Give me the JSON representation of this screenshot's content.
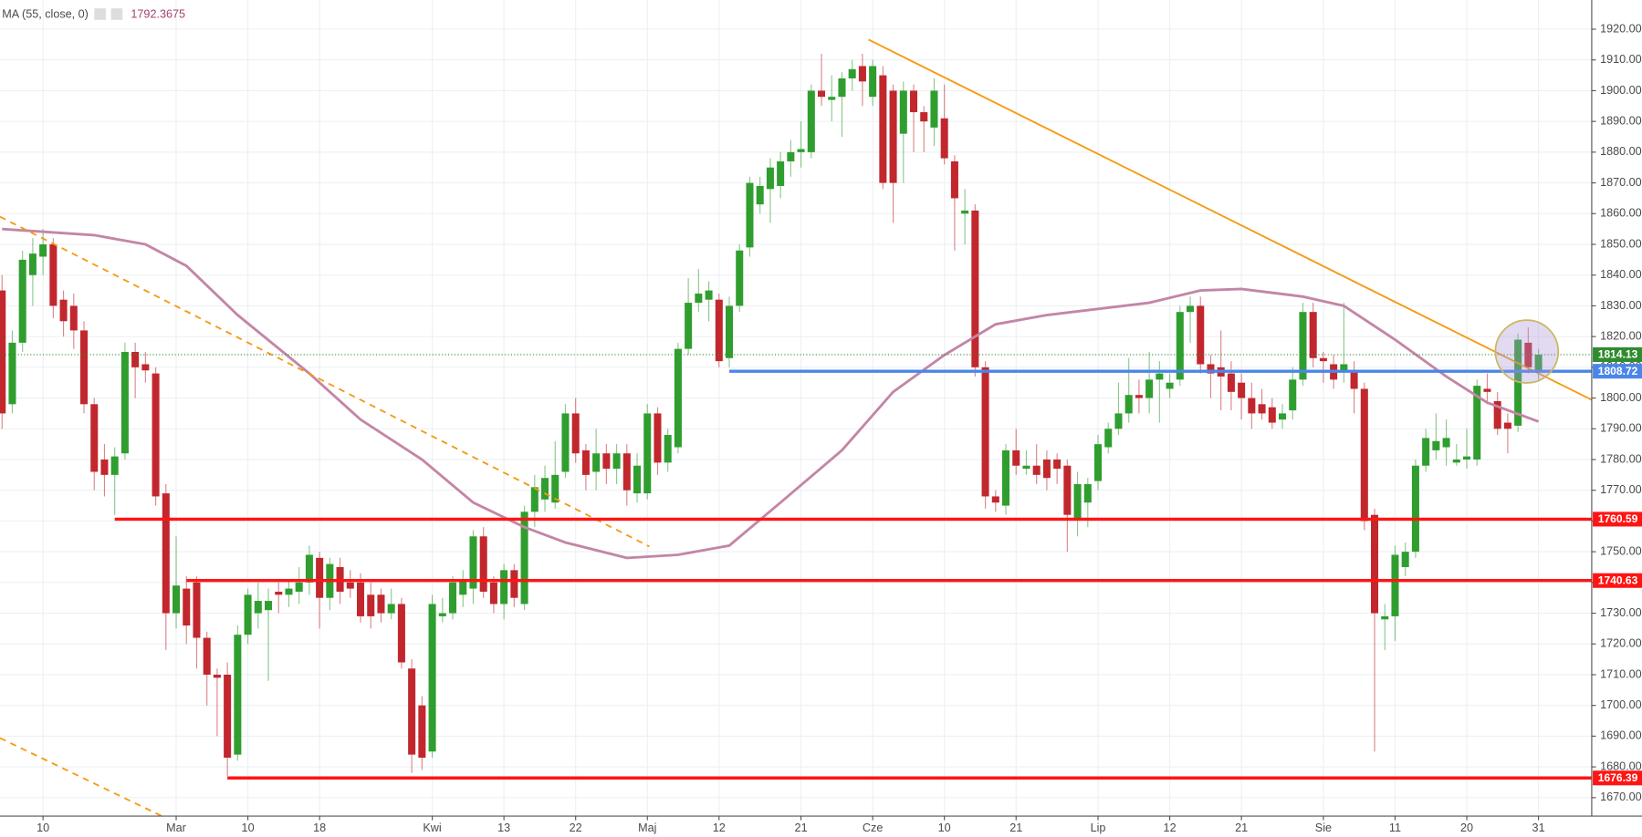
{
  "chart_data": {
    "type": "candlestick",
    "indicator": {
      "label": "MA (55, close, 0)",
      "color": "#c386a6",
      "x": [
        0,
        9,
        14,
        18,
        23,
        30,
        35,
        41,
        46,
        51,
        55,
        61,
        66,
        71,
        76,
        82,
        87,
        92,
        97,
        102,
        107,
        112,
        117,
        121,
        127,
        131,
        136,
        141,
        145,
        150
      ],
      "values": [
        1855,
        1853,
        1850,
        1843,
        1827,
        1808,
        1793,
        1780,
        1766,
        1758,
        1753,
        1748,
        1749,
        1752,
        1766,
        1783,
        1802,
        1814,
        1824,
        1827,
        1829,
        1831,
        1835,
        1835.5,
        1833,
        1830,
        1819,
        1807,
        1798.5,
        1792.3675
      ]
    },
    "up_color": "#2f9e2f",
    "down_color": "#c1272d",
    "categories": [
      null,
      null,
      null,
      null,
      null,
      null,
      null,
      null,
      null,
      null,
      null,
      null,
      null,
      null,
      null,
      null,
      null,
      null,
      null,
      null,
      null,
      null,
      null,
      null,
      null,
      null,
      null,
      null,
      null,
      null,
      null,
      null,
      null,
      null,
      null,
      null,
      null,
      null,
      null,
      null,
      null,
      null,
      null,
      null,
      null,
      null,
      null,
      null,
      null,
      null,
      null,
      null,
      null,
      null,
      null,
      null,
      null,
      null,
      null,
      null,
      null,
      null,
      null,
      null,
      null,
      null,
      null,
      null,
      null,
      null,
      null,
      null,
      null,
      null,
      null,
      null,
      null,
      null,
      null,
      null,
      null,
      null,
      null,
      null,
      null,
      null,
      null,
      null,
      null,
      null,
      null,
      null,
      null,
      null,
      null,
      null,
      null,
      null,
      null,
      null,
      null,
      null,
      null,
      null,
      null,
      null,
      null,
      null,
      null,
      null,
      null,
      null,
      null,
      null,
      null,
      null,
      null,
      null,
      null,
      null,
      null,
      null,
      null,
      null,
      null,
      null,
      null,
      null,
      null,
      null,
      null,
      null,
      null,
      null,
      null,
      null,
      null,
      null,
      null,
      null,
      null,
      null,
      null,
      null,
      null,
      null,
      null,
      null,
      null,
      null,
      null
    ],
    "open": [
      1835,
      1798,
      1818,
      1840,
      1846,
      1850,
      1832,
      1830,
      1822,
      1798,
      1780,
      1775,
      1782,
      1815,
      1811,
      1808,
      1769,
      1730,
      1738,
      1740,
      1722,
      1710,
      1710,
      1684,
      1723,
      1730,
      1731,
      1737,
      1736,
      1737,
      1740,
      1748,
      1735,
      1745,
      1740,
      1740,
      1736,
      1736,
      1730,
      1733,
      1712,
      1700,
      1685,
      1729,
      1730,
      1736,
      1738,
      1755,
      1740,
      1733,
      1744,
      1733,
      1763,
      1767,
      1766,
      1776,
      1795,
      1783,
      1776,
      1782,
      1777,
      1782,
      1769,
      1769,
      1795,
      1779,
      1784,
      1816,
      1831,
      1832,
      1832,
      1813,
      1830,
      1849,
      1863,
      1868,
      1869,
      1877,
      1880,
      1880,
      1900,
      1897,
      1898,
      1904,
      1908,
      1898,
      1905,
      1900,
      1886,
      1900,
      1893,
      1888,
      1891,
      1877,
      1860,
      1861,
      1810,
      1768,
      1765,
      1783,
      1777,
      1778,
      1780,
      1780,
      1778,
      1761,
      1766,
      1773,
      1784,
      1790,
      1795,
      1801,
      1800,
      1806,
      1803,
      1806,
      1828,
      1830,
      1811,
      1810,
      1808,
      1805,
      1800,
      1798,
      1797,
      1793,
      1796,
      1806,
      1828,
      1813,
      1811,
      1809,
      1809,
      1803,
      1762,
      1728,
      1729,
      1745,
      1750,
      1778,
      1783,
      1784,
      1779,
      1780,
      1780,
      1803,
      1799,
      1792,
      1791,
      1818,
      1809
    ],
    "high": [
      1840,
      1822,
      1848,
      1852,
      1855,
      1852,
      1835,
      1834,
      1825,
      1800,
      1785,
      1784,
      1818,
      1818,
      1815,
      1810,
      1772,
      1755,
      1742,
      1742,
      1724,
      1712,
      1714,
      1726,
      1738,
      1740,
      1738,
      1740,
      1741,
      1745,
      1752,
      1750,
      1748,
      1748,
      1744,
      1743,
      1740,
      1738,
      1738,
      1735,
      1715,
      1703,
      1736,
      1735,
      1742,
      1744,
      1757,
      1758,
      1742,
      1746,
      1746,
      1765,
      1775,
      1778,
      1786,
      1798,
      1800,
      1785,
      1790,
      1785,
      1785,
      1785,
      1782,
      1798,
      1797,
      1790,
      1818,
      1839,
      1842,
      1838,
      1834,
      1833,
      1850,
      1872,
      1872,
      1878,
      1880,
      1884,
      1890,
      1902,
      1912,
      1905,
      1906,
      1910,
      1912,
      1910,
      1908,
      1902,
      1903,
      1902,
      1895,
      1904,
      1902,
      1879,
      1868,
      1863,
      1812,
      1770,
      1785,
      1790,
      1783,
      1785,
      1783,
      1782,
      1780,
      1776,
      1774,
      1788,
      1792,
      1805,
      1813,
      1806,
      1815,
      1812,
      1808,
      1830,
      1833,
      1833,
      1814,
      1822,
      1812,
      1808,
      1805,
      1803,
      1800,
      1798,
      1810,
      1831,
      1831,
      1815,
      1814,
      1831,
      1812,
      1805,
      1764,
      1733,
      1752,
      1753,
      1780,
      1790,
      1795,
      1793,
      1785,
      1790,
      1806,
      1808,
      1802,
      1795,
      1821,
      1823,
      1816
    ],
    "low": [
      1790,
      1795,
      1815,
      1830,
      1840,
      1826,
      1820,
      1816,
      1795,
      1770,
      1768,
      1762,
      1780,
      1800,
      1805,
      1765,
      1718,
      1725,
      1720,
      1712,
      1700,
      1690,
      1677,
      1682,
      1720,
      1725,
      1708,
      1730,
      1732,
      1733,
      1736,
      1725,
      1731,
      1733,
      1735,
      1727,
      1725,
      1727,
      1728,
      1712,
      1678,
      1679,
      1683,
      1727,
      1728,
      1732,
      1733,
      1735,
      1730,
      1728,
      1732,
      1731,
      1758,
      1763,
      1764,
      1774,
      1779,
      1770,
      1770,
      1772,
      1772,
      1765,
      1766,
      1767,
      1775,
      1776,
      1782,
      1814,
      1828,
      1825,
      1810,
      1810,
      1828,
      1846,
      1860,
      1857,
      1865,
      1872,
      1875,
      1878,
      1895,
      1890,
      1885,
      1900,
      1895,
      1895,
      1868,
      1857,
      1870,
      1880,
      1880,
      1882,
      1876,
      1848,
      1850,
      1807,
      1764,
      1763,
      1762,
      1775,
      1775,
      1772,
      1770,
      1772,
      1750,
      1755,
      1758,
      1770,
      1782,
      1788,
      1792,
      1795,
      1795,
      1792,
      1800,
      1804,
      1818,
      1808,
      1800,
      1796,
      1796,
      1793,
      1790,
      1793,
      1790,
      1790,
      1793,
      1804,
      1810,
      1805,
      1803,
      1805,
      1795,
      1757,
      1685,
      1718,
      1721,
      1742,
      1748,
      1776,
      1780,
      1778,
      1778,
      1777,
      1778,
      1798,
      1788,
      1782,
      1789,
      1808,
      1806
    ],
    "close": [
      1795,
      1818,
      1845,
      1847,
      1850,
      1830,
      1825,
      1822,
      1798,
      1776,
      1775,
      1781,
      1815,
      1810,
      1809,
      1768,
      1730,
      1739,
      1726,
      1722,
      1710,
      1709,
      1683,
      1723,
      1736,
      1734,
      1734,
      1736,
      1738,
      1740,
      1749,
      1735,
      1746,
      1737,
      1738,
      1729,
      1729,
      1730,
      1733,
      1714,
      1684,
      1683,
      1733,
      1730,
      1740,
      1741,
      1755,
      1737,
      1733,
      1744,
      1735,
      1763,
      1771,
      1774,
      1775,
      1795,
      1782,
      1775,
      1782,
      1777,
      1782,
      1770,
      1778,
      1795,
      1779,
      1788,
      1816,
      1831,
      1834,
      1835,
      1812,
      1830,
      1848,
      1870,
      1869,
      1875,
      1877,
      1880,
      1881,
      1900,
      1898,
      1898,
      1904,
      1907,
      1903,
      1908,
      1870,
      1870,
      1900,
      1893,
      1890,
      1900,
      1878,
      1865,
      1861,
      1810,
      1768,
      1766,
      1783,
      1778,
      1778,
      1775,
      1774,
      1777,
      1762,
      1772,
      1772,
      1785,
      1790,
      1795,
      1801,
      1800,
      1806,
      1808,
      1805,
      1828,
      1830,
      1811,
      1808,
      1807,
      1802,
      1800,
      1795,
      1795,
      1792,
      1795,
      1806,
      1828,
      1813,
      1812,
      1806,
      1811,
      1803,
      1760,
      1730,
      1729,
      1749,
      1750,
      1778,
      1787,
      1786,
      1787,
      1780,
      1781,
      1804,
      1802,
      1790,
      1790,
      1819,
      1810,
      1814.13
    ],
    "levels": [
      {
        "value": 1814.13,
        "from": 0,
        "color": "#2e8b2e",
        "style": "dotted"
      },
      {
        "value": 1808.72,
        "from": 71,
        "color": "#4a86e8",
        "style": "solid"
      },
      {
        "value": 1760.59,
        "from": 11,
        "color": "#ff1414",
        "style": "solid"
      },
      {
        "value": 1740.63,
        "from": 18,
        "color": "#ff1414",
        "style": "solid"
      },
      {
        "value": 1676.39,
        "from": 22,
        "color": "#ff1414",
        "style": "solid"
      }
    ],
    "trendlines": [
      {
        "x": [
          84.6,
          155.2
        ],
        "y": [
          1916.6,
          1799.4
        ],
        "color": "#f59a10",
        "style": "solid"
      },
      {
        "x": [
          -0.2,
          63.2
        ],
        "y": [
          1859,
          1751.7
        ],
        "color": "#f59a10",
        "style": "dashed"
      },
      {
        "x": [
          -0.2,
          15.6
        ],
        "y": [
          1689.4,
          1664
        ],
        "color": "#f59a10",
        "style": "dashed"
      }
    ],
    "xlim": [
      -0.2,
      155.2
    ],
    "xticks": [
      {
        "value": 4,
        "label": "10"
      },
      {
        "value": 17,
        "label": "Mar"
      },
      {
        "value": 24,
        "label": "10"
      },
      {
        "value": 31,
        "label": "18"
      },
      {
        "value": 42,
        "label": "Kwi"
      },
      {
        "value": 49,
        "label": "13"
      },
      {
        "value": 56,
        "label": "22"
      },
      {
        "value": 63,
        "label": "Maj"
      },
      {
        "value": 70,
        "label": "12"
      },
      {
        "value": 78,
        "label": "21"
      },
      {
        "value": 85,
        "label": "Cze"
      },
      {
        "value": 92,
        "label": "10"
      },
      {
        "value": 99,
        "label": "21"
      },
      {
        "value": 107,
        "label": "Lip"
      },
      {
        "value": 114,
        "label": "12"
      },
      {
        "value": 121,
        "label": "21"
      },
      {
        "value": 129,
        "label": "Sie"
      },
      {
        "value": 136,
        "label": "11"
      },
      {
        "value": 143,
        "label": "20"
      },
      {
        "value": 150,
        "label": "31"
      }
    ],
    "ylim": [
      1664,
      1929.5
    ],
    "yticks": [
      {
        "value": 1670,
        "label": "1670.00"
      },
      {
        "value": 1680,
        "label": "1680.00"
      },
      {
        "value": 1690,
        "label": "1690.00"
      },
      {
        "value": 1700,
        "label": "1700.00"
      },
      {
        "value": 1710,
        "label": "1710.00"
      },
      {
        "value": 1720,
        "label": "1720.00"
      },
      {
        "value": 1730,
        "label": "1730.00"
      },
      {
        "value": 1740,
        "label": "1740.00"
      },
      {
        "value": 1750,
        "label": "1750.00"
      },
      {
        "value": 1760,
        "label": "1760.00"
      },
      {
        "value": 1770,
        "label": "1770.00"
      },
      {
        "value": 1780,
        "label": "1780.00"
      },
      {
        "value": 1790,
        "label": "1790.00"
      },
      {
        "value": 1800,
        "label": "1800.00"
      },
      {
        "value": 1810,
        "label": "1810.00"
      },
      {
        "value": 1820,
        "label": "1820.00"
      },
      {
        "value": 1830,
        "label": "1830.00"
      },
      {
        "value": 1840,
        "label": "1840.00"
      },
      {
        "value": 1850,
        "label": "1850.00"
      },
      {
        "value": 1860,
        "label": "1860.00"
      },
      {
        "value": 1870,
        "label": "1870.00"
      },
      {
        "value": 1880,
        "label": "1880.00"
      },
      {
        "value": 1890,
        "label": "1890.00"
      },
      {
        "value": 1900,
        "label": "1900.00"
      },
      {
        "value": 1910,
        "label": "1910.00"
      },
      {
        "value": 1920,
        "label": "1920.00"
      }
    ],
    "grid": true
  }
}
